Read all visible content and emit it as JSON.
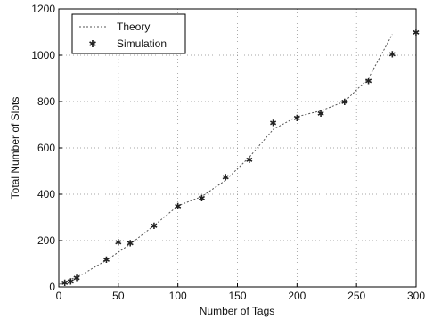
{
  "chart_data": {
    "type": "line",
    "title": "",
    "xlabel": "Number of Tags",
    "ylabel": "Total Number of Slots",
    "xlim": [
      0,
      300
    ],
    "ylim": [
      0,
      1200
    ],
    "xticks": [
      0,
      50,
      100,
      150,
      200,
      250,
      300
    ],
    "yticks": [
      0,
      200,
      400,
      600,
      800,
      1000,
      1200
    ],
    "grid": true,
    "legend_position": "top-left",
    "series": [
      {
        "name": "Theory",
        "style": "line",
        "x": [
          0,
          20,
          40,
          60,
          80,
          100,
          120,
          140,
          160,
          180,
          200,
          220,
          240,
          260,
          280
        ],
        "y": [
          10,
          55,
          115,
          185,
          265,
          350,
          390,
          460,
          560,
          680,
          735,
          760,
          800,
          900,
          1090
        ]
      },
      {
        "name": "Simulation",
        "style": "marker",
        "x": [
          5,
          10,
          15,
          40,
          50,
          60,
          80,
          100,
          120,
          140,
          160,
          180,
          200,
          220,
          240,
          260,
          280,
          300
        ],
        "y": [
          20,
          25,
          40,
          120,
          195,
          190,
          265,
          350,
          385,
          475,
          550,
          710,
          730,
          750,
          800,
          890,
          1005,
          1100
        ]
      }
    ]
  }
}
